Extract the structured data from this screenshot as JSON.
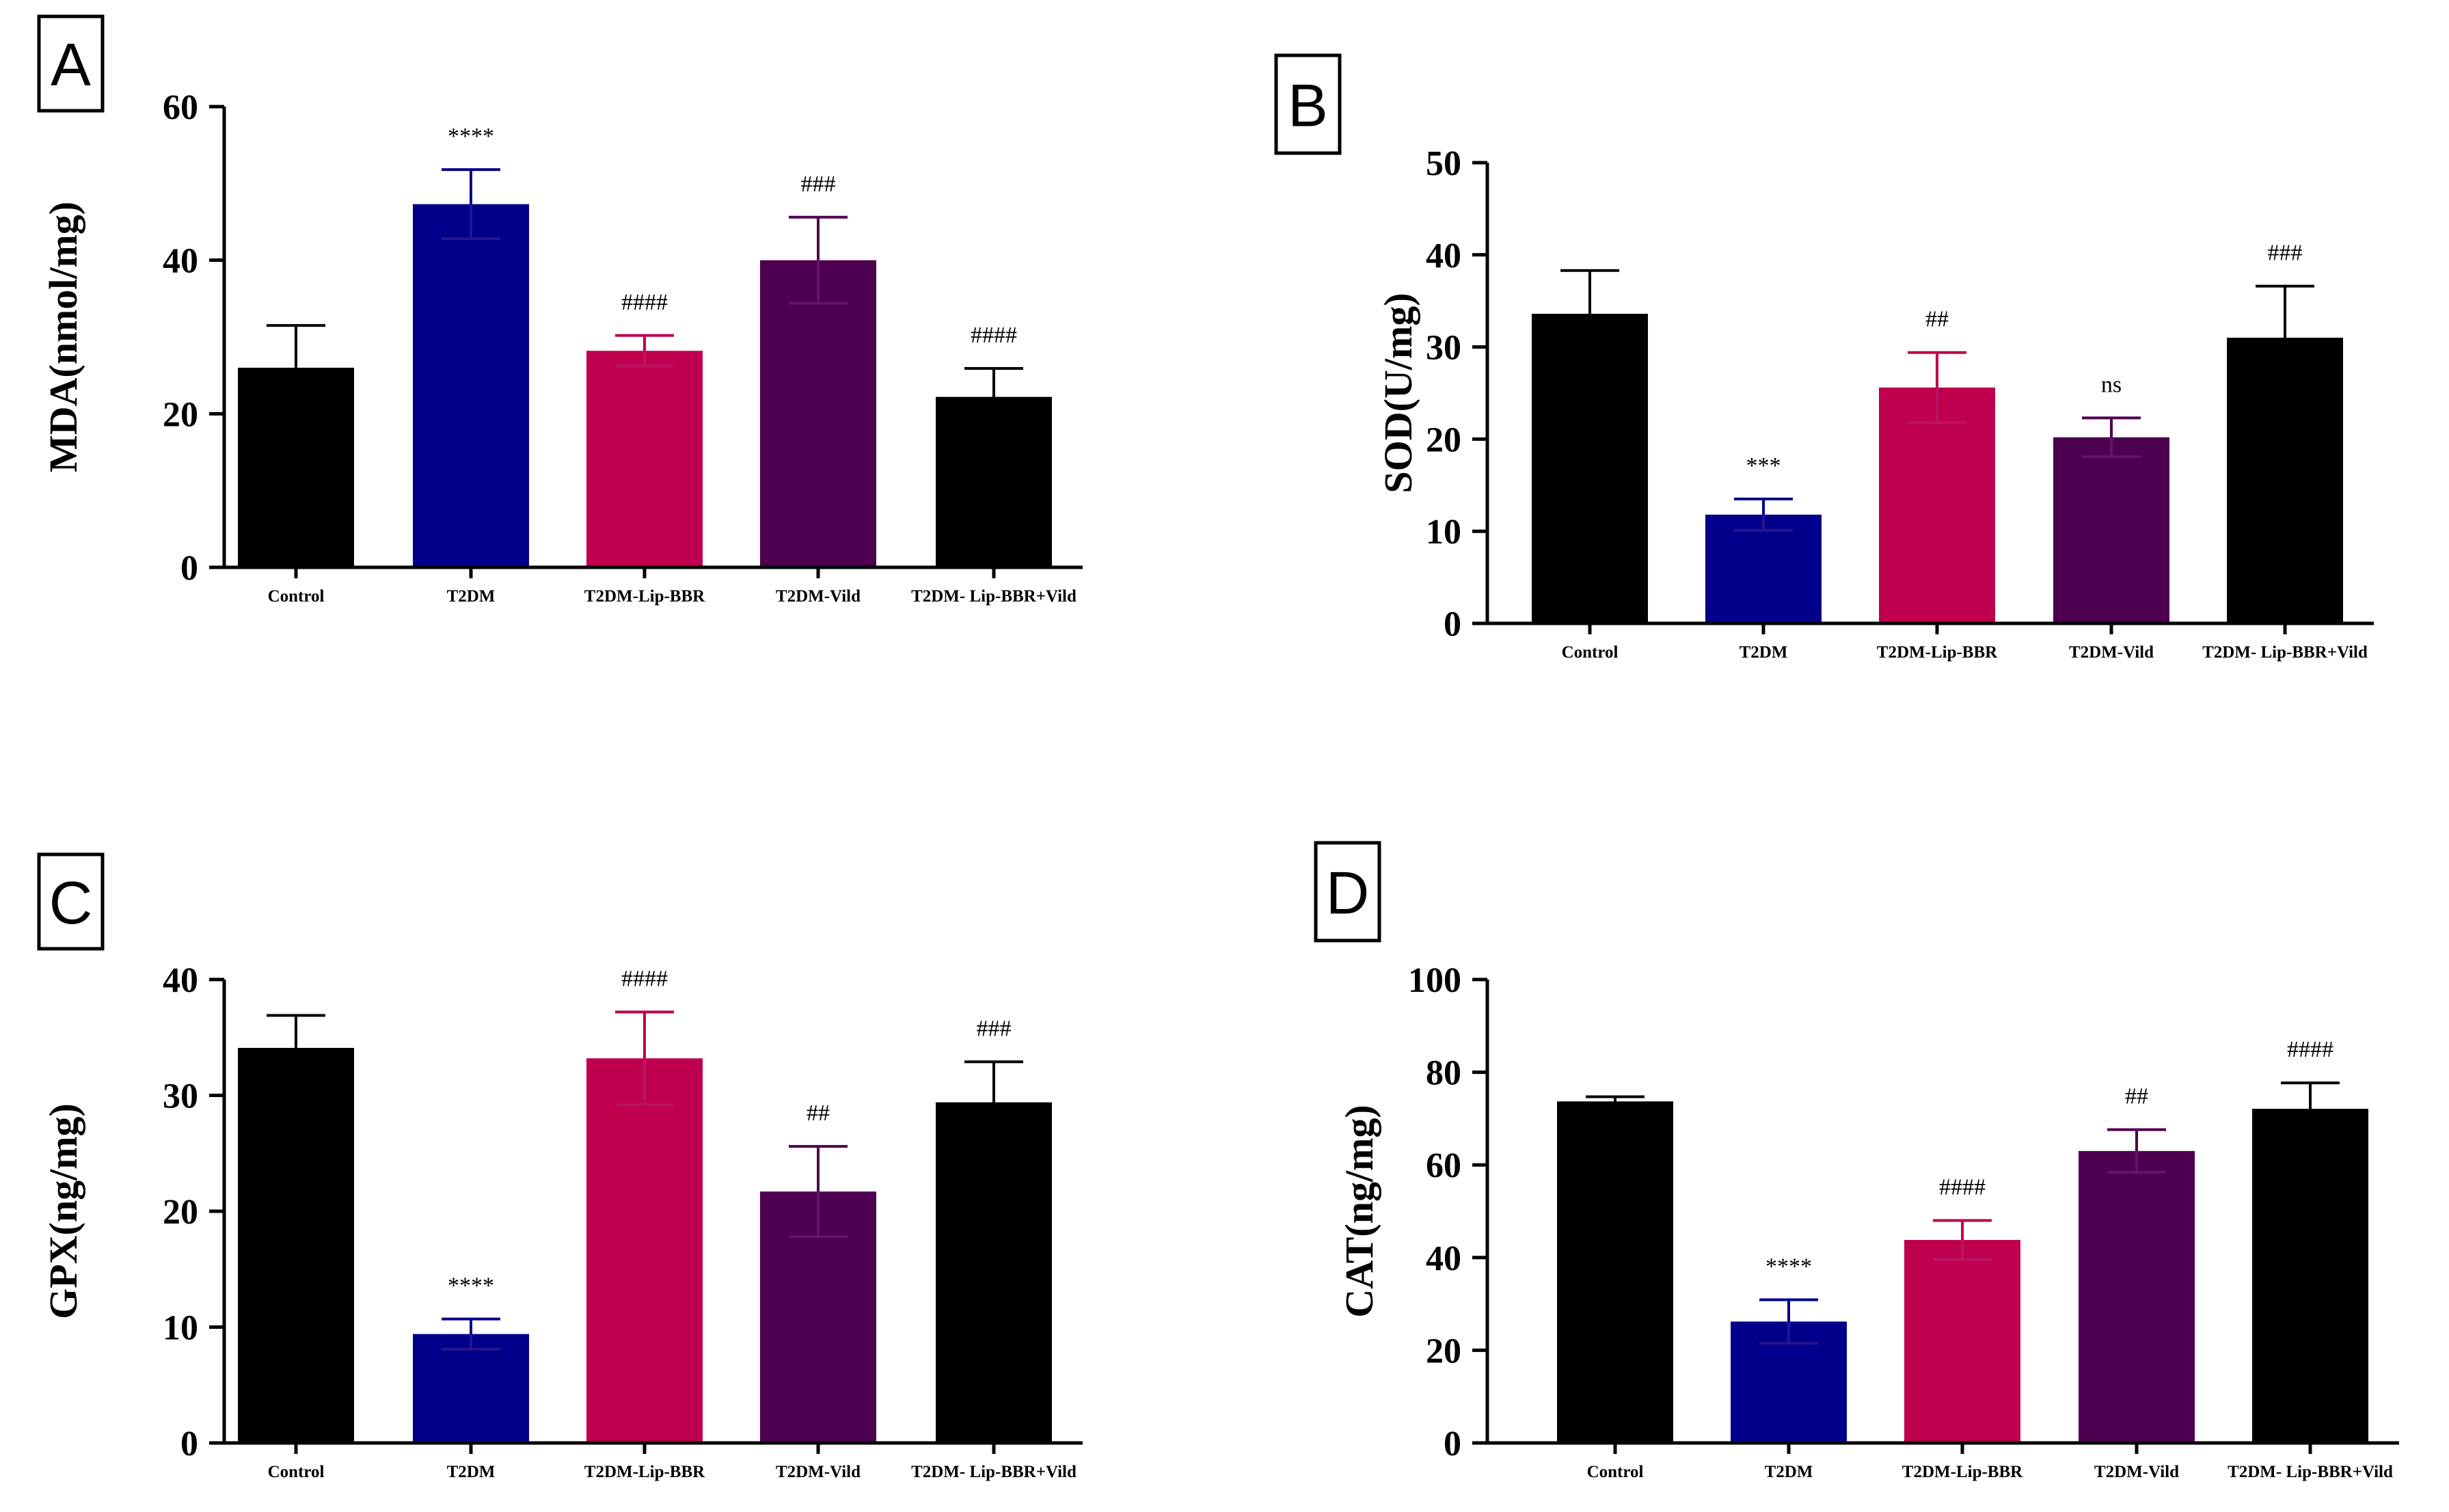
{
  "figure_title": "",
  "chart_data": [
    {
      "panel": "A",
      "type": "bar",
      "title": "",
      "xlabel": "",
      "ylabel": "MDA(nmol/mg)",
      "ylim": [
        0,
        60
      ],
      "yticks": [
        0,
        20,
        40,
        60
      ],
      "categories": [
        "Control",
        "T2DM",
        "T2DM-Lip-BBR",
        "T2DM-Vild",
        "T2DM- Lip-BBR+Vild"
      ],
      "values": [
        26,
        47.3,
        28.2,
        40,
        22.2
      ],
      "errors": [
        5.5,
        4.5,
        2,
        5.6,
        3.7
      ],
      "annotations": [
        "",
        "****",
        "####",
        "###",
        "####"
      ],
      "colors": [
        "#000000",
        "#00008B",
        "#C0004E",
        "#4E0050",
        "#000000"
      ]
    },
    {
      "panel": "B",
      "type": "bar",
      "title": "",
      "xlabel": "",
      "ylabel": "SOD(U/mg)",
      "ylim": [
        0,
        50
      ],
      "yticks": [
        0,
        10,
        20,
        30,
        40,
        50
      ],
      "categories": [
        "Control",
        "T2DM",
        "T2DM-Lip-BBR",
        "T2DM-Vild",
        "T2DM- Lip-BBR+Vild"
      ],
      "values": [
        33.6,
        11.8,
        25.6,
        20.2,
        31
      ],
      "errors": [
        4.7,
        1.7,
        3.8,
        2.1,
        5.6
      ],
      "annotations": [
        "",
        "***",
        "##",
        "ns",
        "###"
      ],
      "colors": [
        "#000000",
        "#00008B",
        "#C0004E",
        "#4E0050",
        "#000000"
      ]
    },
    {
      "panel": "C",
      "type": "bar",
      "title": "",
      "xlabel": "",
      "ylabel": "GPX(ng/mg)",
      "ylim": [
        0,
        40
      ],
      "yticks": [
        0,
        10,
        20,
        30,
        40
      ],
      "categories": [
        "Control",
        "T2DM",
        "T2DM-Lip-BBR",
        "T2DM-Vild",
        "T2DM- Lip-BBR+Vild"
      ],
      "values": [
        34.1,
        9.4,
        33.2,
        21.7,
        29.4
      ],
      "errors": [
        2.8,
        1.3,
        4,
        3.9,
        3.5
      ],
      "annotations": [
        "",
        "****",
        "####",
        "##",
        "###"
      ],
      "colors": [
        "#000000",
        "#00008B",
        "#C0004E",
        "#4E0050",
        "#000000"
      ]
    },
    {
      "panel": "D",
      "type": "bar",
      "title": "",
      "xlabel": "",
      "ylabel": "CAT(ng/mg)",
      "ylim": [
        0,
        100
      ],
      "yticks": [
        0,
        20,
        40,
        60,
        80,
        100
      ],
      "categories": [
        "Control",
        "T2DM",
        "T2DM-Lip-BBR",
        "T2DM-Vild",
        "T2DM- Lip-BBR+Vild"
      ],
      "values": [
        73.7,
        26.2,
        43.8,
        63,
        72.1
      ],
      "errors": [
        1,
        4.7,
        4.2,
        4.6,
        5.6
      ],
      "annotations": [
        "",
        "****",
        "####",
        "##",
        "####"
      ],
      "colors": [
        "#000000",
        "#00008B",
        "#C0004E",
        "#4E0050",
        "#000000"
      ]
    }
  ]
}
